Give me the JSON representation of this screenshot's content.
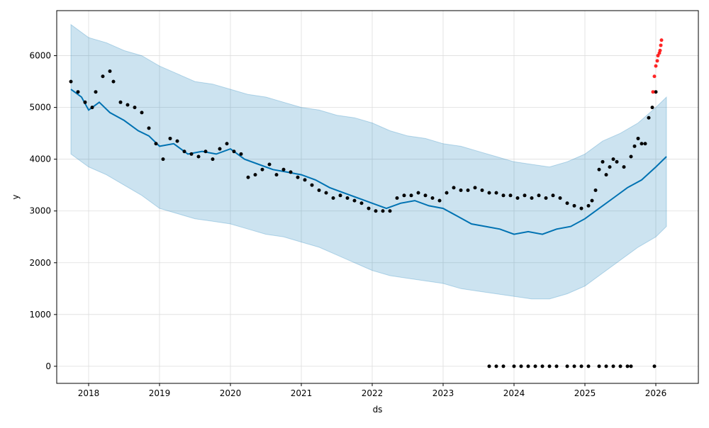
{
  "chart_data": {
    "type": "line",
    "xlabel": "ds",
    "ylabel": "y",
    "xlim": [
      2017.55,
      2026.6
    ],
    "ylim": [
      -330,
      6870
    ],
    "grid": true,
    "x_ticks": [
      {
        "value": 2018,
        "label": "2018"
      },
      {
        "value": 2019,
        "label": "2019"
      },
      {
        "value": 2020,
        "label": "2020"
      },
      {
        "value": 2021,
        "label": "2021"
      },
      {
        "value": 2022,
        "label": "2022"
      },
      {
        "value": 2023,
        "label": "2023"
      },
      {
        "value": 2024,
        "label": "2024"
      },
      {
        "value": 2025,
        "label": "2025"
      },
      {
        "value": 2026,
        "label": "2026"
      }
    ],
    "y_ticks": [
      {
        "value": 0,
        "label": "0"
      },
      {
        "value": 1000,
        "label": "1000"
      },
      {
        "value": 2000,
        "label": "2000"
      },
      {
        "value": 3000,
        "label": "3000"
      },
      {
        "value": 4000,
        "label": "4000"
      },
      {
        "value": 5000,
        "label": "5000"
      },
      {
        "value": 6000,
        "label": "6000"
      }
    ],
    "colors": {
      "forecast": "#0072B2",
      "band": "#0072B2",
      "observed": "#000000",
      "recent": "#ff0000",
      "grid": "#dddddd"
    },
    "forecast": {
      "x": [
        2017.75,
        2017.9,
        2018.0,
        2018.15,
        2018.3,
        2018.5,
        2018.7,
        2018.85,
        2019.0,
        2019.2,
        2019.4,
        2019.6,
        2019.8,
        2020.0,
        2020.2,
        2020.4,
        2020.6,
        2020.8,
        2021.0,
        2021.2,
        2021.4,
        2021.6,
        2021.8,
        2022.0,
        2022.2,
        2022.4,
        2022.6,
        2022.8,
        2023.0,
        2023.2,
        2023.4,
        2023.6,
        2023.8,
        2024.0,
        2024.2,
        2024.4,
        2024.6,
        2024.8,
        2025.0,
        2025.2,
        2025.4,
        2025.6,
        2025.8,
        2026.0,
        2026.15
      ],
      "y": [
        5350,
        5200,
        4950,
        5100,
        4900,
        4750,
        4550,
        4450,
        4250,
        4300,
        4100,
        4150,
        4100,
        4200,
        4000,
        3900,
        3800,
        3750,
        3700,
        3600,
        3450,
        3350,
        3250,
        3150,
        3050,
        3150,
        3200,
        3100,
        3050,
        2900,
        2750,
        2700,
        2650,
        2550,
        2600,
        2550,
        2650,
        2700,
        2850,
        3050,
        3250,
        3450,
        3600,
        3850,
        4050
      ]
    },
    "uncertainty_band": {
      "x": [
        2017.75,
        2018.0,
        2018.25,
        2018.5,
        2018.75,
        2019.0,
        2019.25,
        2019.5,
        2019.75,
        2020.0,
        2020.25,
        2020.5,
        2020.75,
        2021.0,
        2021.25,
        2021.5,
        2021.75,
        2022.0,
        2022.25,
        2022.5,
        2022.75,
        2023.0,
        2023.25,
        2023.5,
        2023.75,
        2024.0,
        2024.25,
        2024.5,
        2024.75,
        2025.0,
        2025.25,
        2025.5,
        2025.75,
        2026.0,
        2026.15
      ],
      "lower": [
        4100,
        3850,
        3700,
        3500,
        3300,
        3050,
        2950,
        2850,
        2800,
        2750,
        2650,
        2550,
        2500,
        2400,
        2300,
        2150,
        2000,
        1850,
        1750,
        1700,
        1650,
        1600,
        1500,
        1450,
        1400,
        1350,
        1300,
        1300,
        1400,
        1550,
        1800,
        2050,
        2300,
        2500,
        2700
      ],
      "upper": [
        6600,
        6350,
        6250,
        6100,
        6000,
        5800,
        5650,
        5500,
        5450,
        5350,
        5250,
        5200,
        5100,
        5000,
        4950,
        4850,
        4800,
        4700,
        4550,
        4450,
        4400,
        4300,
        4250,
        4150,
        4050,
        3950,
        3900,
        3850,
        3950,
        4100,
        4350,
        4500,
        4700,
        5000,
        5200
      ]
    },
    "observed": {
      "x": [
        2017.75,
        2017.85,
        2017.95,
        2018.05,
        2018.1,
        2018.2,
        2018.3,
        2018.35,
        2018.45,
        2018.55,
        2018.65,
        2018.75,
        2018.85,
        2018.95,
        2019.05,
        2019.15,
        2019.25,
        2019.35,
        2019.45,
        2019.55,
        2019.65,
        2019.75,
        2019.85,
        2019.95,
        2020.05,
        2020.15,
        2020.25,
        2020.35,
        2020.45,
        2020.55,
        2020.65,
        2020.75,
        2020.85,
        2020.95,
        2021.05,
        2021.15,
        2021.25,
        2021.35,
        2021.45,
        2021.55,
        2021.65,
        2021.75,
        2021.85,
        2021.95,
        2022.05,
        2022.15,
        2022.25,
        2022.35,
        2022.45,
        2022.55,
        2022.65,
        2022.75,
        2022.85,
        2022.95,
        2023.05,
        2023.15,
        2023.25,
        2023.35,
        2023.45,
        2023.55,
        2023.65,
        2023.75,
        2023.85,
        2023.95,
        2024.05,
        2024.15,
        2024.25,
        2024.35,
        2024.45,
        2024.55,
        2024.65,
        2024.75,
        2024.85,
        2024.95,
        2025.05,
        2025.1,
        2025.15,
        2025.2,
        2025.25,
        2025.3,
        2025.35,
        2025.4,
        2025.45,
        2025.55,
        2025.65,
        2025.7,
        2025.75,
        2025.8,
        2025.85,
        2025.9,
        2025.95,
        2026.0
      ],
      "y": [
        5500,
        5300,
        5100,
        5000,
        5300,
        5600,
        5700,
        5500,
        5100,
        5050,
        5000,
        4900,
        4600,
        4300,
        4000,
        4400,
        4350,
        4150,
        4100,
        4050,
        4150,
        4000,
        4200,
        4300,
        4150,
        4100,
        3650,
        3700,
        3800,
        3900,
        3700,
        3800,
        3750,
        3650,
        3600,
        3500,
        3400,
        3350,
        3250,
        3300,
        3250,
        3200,
        3150,
        3050,
        3000,
        3000,
        3000,
        3250,
        3300,
        3300,
        3350,
        3300,
        3250,
        3200,
        3350,
        3450,
        3400,
        3400,
        3450,
        3400,
        3350,
        3350,
        3300,
        3300,
        3250,
        3300,
        3250,
        3300,
        3250,
        3300,
        3250,
        3150,
        3100,
        3050,
        3100,
        3200,
        3400,
        3800,
        3950,
        3700,
        3850,
        4000,
        3950,
        3850,
        4050,
        4250,
        4400,
        4300,
        4300,
        4800,
        5000,
        5300
      ]
    },
    "observed_zero": {
      "x": [
        2023.65,
        2023.75,
        2023.85,
        2024.0,
        2024.1,
        2024.2,
        2024.3,
        2024.4,
        2024.5,
        2024.6,
        2024.75,
        2024.85,
        2024.95,
        2025.05,
        2025.2,
        2025.3,
        2025.4,
        2025.5,
        2025.6,
        2025.65,
        2025.98
      ],
      "y": [
        0,
        0,
        0,
        0,
        0,
        0,
        0,
        0,
        0,
        0,
        0,
        0,
        0,
        0,
        0,
        0,
        0,
        0,
        0,
        0,
        0
      ]
    },
    "recent": {
      "x": [
        2025.96,
        2025.98,
        2026.0,
        2026.02,
        2026.03,
        2026.05,
        2026.06,
        2026.07,
        2026.08
      ],
      "y": [
        5300,
        5600,
        5800,
        5900,
        6000,
        6050,
        6100,
        6200,
        6300
      ]
    }
  }
}
